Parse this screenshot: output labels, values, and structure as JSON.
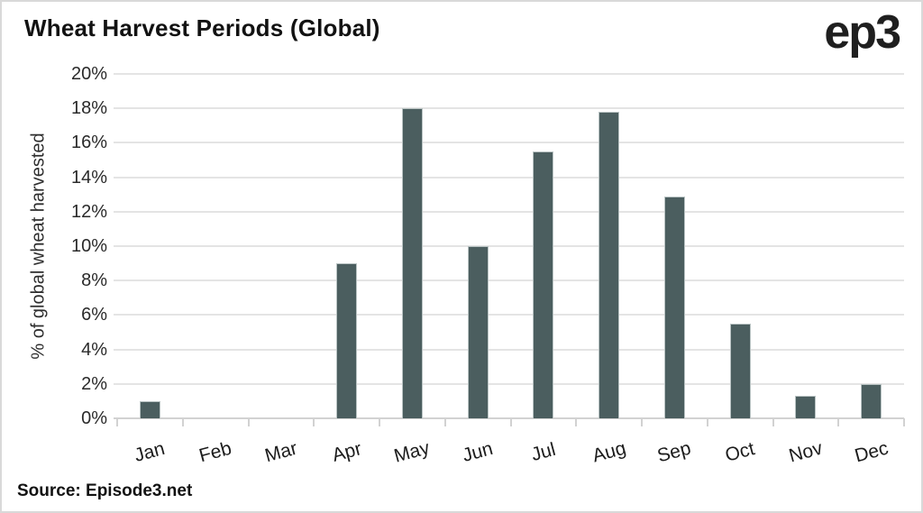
{
  "header": {
    "title": "Wheat Harvest Periods (Global)",
    "logo": "ep3"
  },
  "footer": {
    "source": "Source: Episode3.net"
  },
  "chart_data": {
    "type": "bar",
    "title": "Wheat Harvest Periods (Global)",
    "categories": [
      "Jan",
      "Feb",
      "Mar",
      "Apr",
      "May",
      "Jun",
      "Jul",
      "Aug",
      "Sep",
      "Oct",
      "Nov",
      "Dec"
    ],
    "values": [
      1,
      0,
      0,
      9,
      18,
      10,
      15.5,
      17.8,
      12.9,
      5.5,
      1.3,
      2
    ],
    "xlabel": "",
    "ylabel": "% of global wheat harvested",
    "ylim": [
      0,
      20
    ],
    "ytick_step": 2,
    "yticks": [
      "0%",
      "2%",
      "4%",
      "6%",
      "8%",
      "10%",
      "12%",
      "14%",
      "16%",
      "18%",
      "20%"
    ],
    "grid": true,
    "legend": "none",
    "colors": {
      "bar": "#4b5e5f",
      "bar_border": "#b9c3c3",
      "grid": "#e4e4e4",
      "axis": "#d2d2d2",
      "title_text": "#121212",
      "tick_text": "#2a2a2a"
    }
  }
}
